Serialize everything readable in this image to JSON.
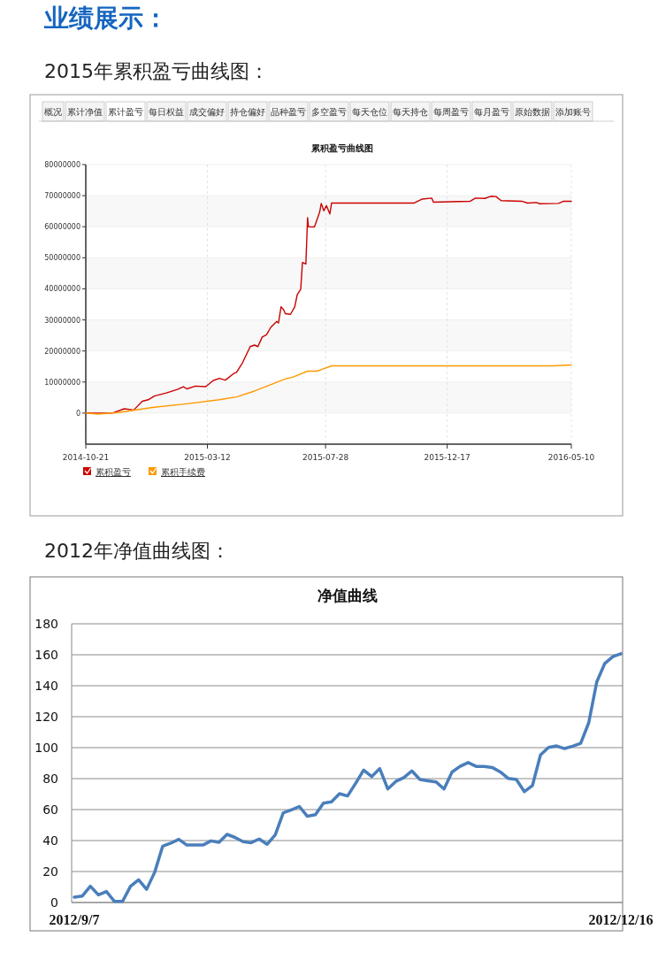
{
  "chart_data": [
    {
      "type": "line",
      "title": "累积盈亏曲线图",
      "annotations": [
        "业绩展示：",
        "2015年累积盈亏曲线图：",
        "概况",
        "累计净值",
        "累计盈亏",
        "每日权益",
        "成交偏好",
        "持仓偏好",
        "品种盈亏",
        "多空盈亏",
        "每天仓位",
        "每天持仓",
        "每周盈亏",
        "每月盈亏",
        "原始数据",
        "添加账号"
      ],
      "xlim": [
        "2014-10-21",
        "2016-05-10"
      ],
      "xticks": [
        "2014-10-21",
        "2015-03-12",
        "2015-07-28",
        "2015-12-17",
        "2016-05-10"
      ],
      "ylim": [
        -10000000,
        80000000
      ],
      "yticks": [
        0,
        10000000,
        20000000,
        30000000,
        40000000,
        50000000,
        60000000,
        70000000,
        80000000
      ],
      "grid": true,
      "legend": "bottom left",
      "series": [
        {
          "name": "累积盈亏",
          "color": "#cc0000",
          "x": [
            "2014-10-21",
            "2014-11-21",
            "2014-12-05",
            "2014-12-16",
            "2014-12-26",
            "2015-01-02",
            "2015-01-09",
            "2015-01-23",
            "2015-02-05",
            "2015-02-12",
            "2015-02-16",
            "2015-02-26",
            "2015-03-10",
            "2015-03-19",
            "2015-03-26",
            "2015-04-02",
            "2015-04-12",
            "2015-04-15",
            "2015-04-22",
            "2015-05-01",
            "2015-05-06",
            "2015-05-10",
            "2015-05-15",
            "2015-05-20",
            "2015-05-25",
            "2015-06-01",
            "2015-06-03",
            "2015-06-06",
            "2015-06-09",
            "2015-06-11",
            "2015-06-17",
            "2015-06-22",
            "2015-06-25",
            "2015-06-29",
            "2015-07-01",
            "2015-07-05",
            "2015-07-07",
            "2015-07-08",
            "2015-07-15",
            "2015-07-21",
            "2015-07-23",
            "2015-07-26",
            "2015-07-29",
            "2015-08-02",
            "2015-08-04",
            "2015-11-08",
            "2015-11-18",
            "2015-11-29",
            "2015-12-01",
            "2016-01-13",
            "2016-01-19",
            "2016-01-30",
            "2016-02-06",
            "2016-02-12",
            "2016-02-18",
            "2016-03-13",
            "2016-03-20",
            "2016-03-30",
            "2016-04-03",
            "2016-04-25",
            "2016-05-01",
            "2016-05-10"
          ],
          "values": [
            0,
            0,
            1400000,
            1000000,
            3800000,
            4300000,
            5500000,
            6500000,
            7600000,
            8500000,
            7800000,
            8700000,
            8500000,
            10500000,
            11200000,
            10600000,
            12800000,
            13100000,
            16200000,
            21400000,
            21900000,
            21400000,
            24500000,
            25200000,
            27600000,
            29500000,
            29000000,
            34200000,
            33300000,
            32000000,
            31800000,
            34200000,
            38200000,
            39900000,
            48500000,
            48000000,
            62900000,
            60000000,
            59900000,
            64600000,
            67500000,
            65100000,
            66800000,
            64100000,
            67600000,
            67600000,
            68900000,
            69200000,
            67900000,
            68200000,
            69200000,
            69100000,
            69800000,
            69700000,
            68400000,
            68200000,
            67600000,
            67800000,
            67400000,
            67500000,
            68200000,
            68200000
          ]
        },
        {
          "name": "累积手续费",
          "color": "#ff9900",
          "x": [
            "2014-10-21",
            "2014-11-04",
            "2014-11-28",
            "2015-01-09",
            "2015-02-16",
            "2015-03-26",
            "2015-04-15",
            "2015-05-06",
            "2015-05-20",
            "2015-06-10",
            "2015-06-20",
            "2015-07-07",
            "2015-07-18",
            "2015-07-24",
            "2015-08-04",
            "2016-04-18",
            "2016-05-10"
          ],
          "values": [
            0,
            -300000,
            200000,
            1900000,
            3000000,
            4300000,
            5200000,
            7100000,
            8600000,
            10900000,
            11600000,
            13500000,
            13500000,
            14100000,
            15200000,
            15200000,
            15500000
          ]
        }
      ]
    },
    {
      "type": "line",
      "title": "净值曲线",
      "annotations": [
        "2012年净值曲线图："
      ],
      "categories": [
        "2012/9/7",
        null,
        null,
        null,
        null,
        null,
        null,
        null,
        null,
        null,
        null,
        null,
        null,
        null,
        null,
        null,
        null,
        null,
        null,
        null,
        null,
        null,
        null,
        null,
        null,
        null,
        null,
        null,
        null,
        null,
        null,
        null,
        null,
        null,
        null,
        null,
        null,
        null,
        null,
        null,
        null,
        null,
        null,
        null,
        null,
        null,
        null,
        null,
        null,
        null,
        null,
        null,
        null,
        null,
        null,
        null,
        null,
        null,
        null,
        null,
        null,
        null,
        null,
        null,
        null,
        null,
        null,
        null,
        "2012/12/16"
      ],
      "ylim": [
        0,
        180
      ],
      "yticks": [
        0,
        20,
        40,
        60,
        80,
        100,
        120,
        140,
        160,
        180
      ],
      "grid": "y",
      "series": [
        {
          "color": "#4a7ebb",
          "values": [
            3.4,
            4.2,
            10.5,
            4.9,
            7.1,
            0.7,
            0.7,
            10.5,
            14.7,
            8.5,
            19.5,
            36.4,
            38.3,
            40.8,
            37.1,
            37.1,
            37.1,
            39.8,
            38.8,
            44,
            42,
            39.3,
            38.6,
            41,
            37.6,
            43.7,
            57.9,
            59.8,
            62,
            55.7,
            56.7,
            64.2,
            65,
            70.3,
            68.8,
            76.9,
            85.5,
            81.3,
            86.5,
            73.3,
            78.2,
            80.6,
            85,
            79.4,
            78.6,
            77.9,
            73.3,
            84.3,
            87.9,
            90.4,
            87.9,
            87.9,
            87.2,
            84.3,
            80.1,
            79.4,
            71.6,
            75.5,
            95.3,
            100.1,
            101.1,
            99.4,
            100.9,
            102.8,
            116,
            142.4,
            154.4,
            158.8,
            160.7
          ]
        }
      ]
    }
  ]
}
